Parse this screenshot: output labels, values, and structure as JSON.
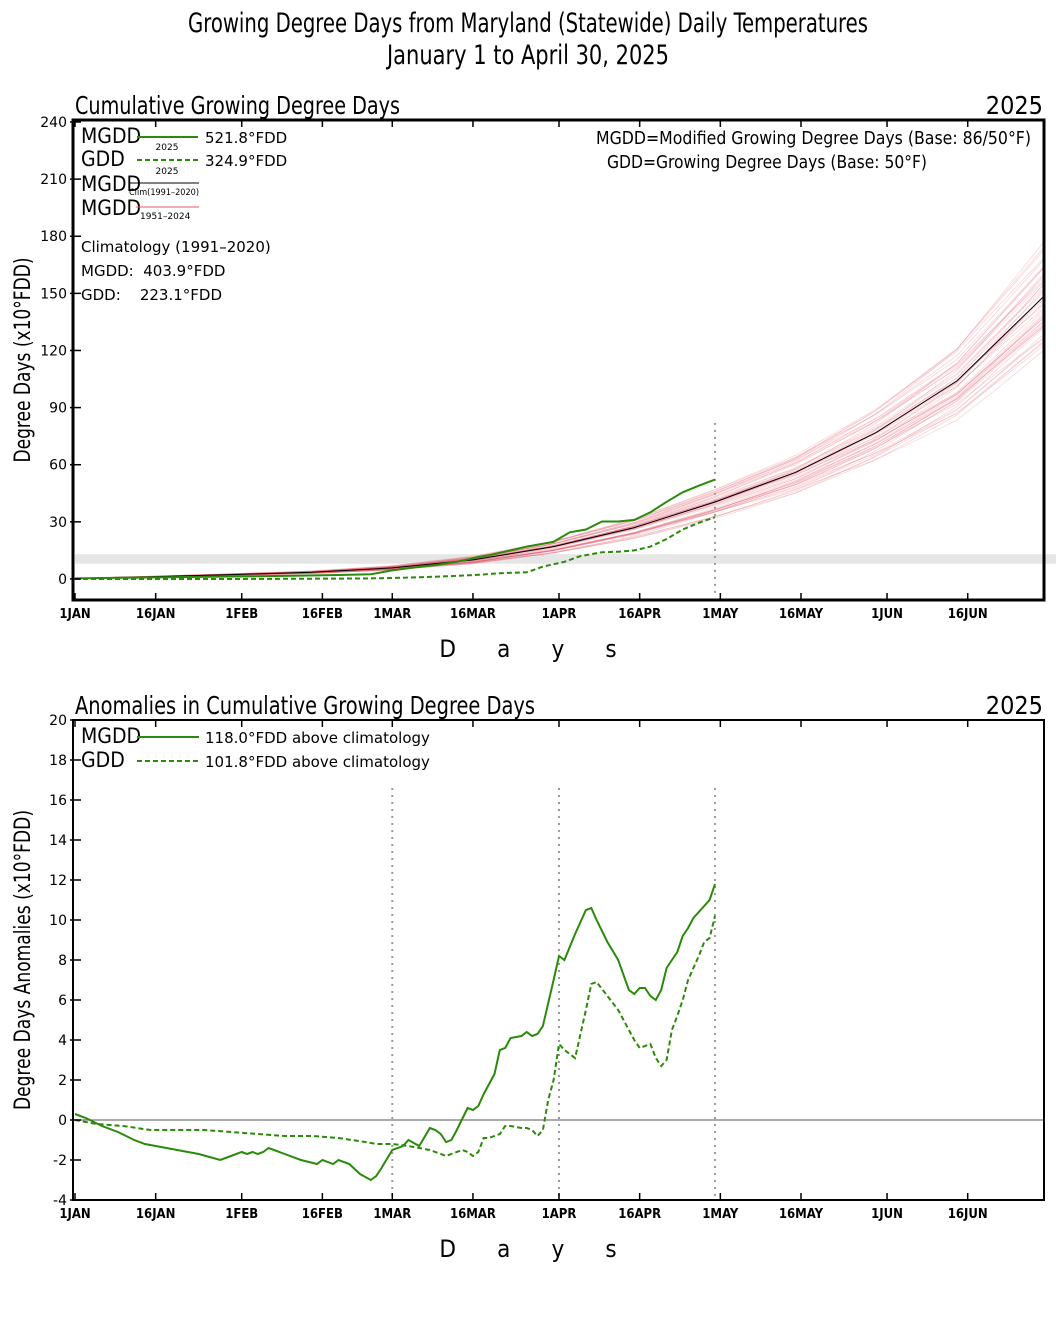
{
  "figure": {
    "title_line1": "Growing Degree Days from Maryland (Statewide) Daily Temperatures",
    "title_line2": "January 1 to April 30, 2025"
  },
  "colors": {
    "obs_2025": "#2a8a0a",
    "climatology": "#000000",
    "history": "#e35a6a",
    "vline": "#9a9a9a",
    "band": "#e6e6e6"
  },
  "panel1": {
    "subtitle": "Cumulative Growing Degree Days",
    "year": "2025",
    "legend": {
      "mgdd_label": "MGDD",
      "mgdd_sub": "2025",
      "mgdd_value": "521.8°FDD",
      "gdd_label": "GDD",
      "gdd_sub": "2025",
      "gdd_value": "324.9°FDD",
      "clim_label": "MGDD",
      "clim_sub": "Clim(1991–2020)",
      "hist_label": "MGDD",
      "hist_sub": "1951–2024"
    },
    "definition1": "MGDD=Modified Growing Degree Days (Base: 86/50°F)",
    "definition2": "GDD=Growing Degree Days (Base: 50°F)",
    "climatology_heading": "Climatology (1991–2020)",
    "climatology_mgdd": "MGDD:  403.9°FDD",
    "climatology_gdd": "GDD:    223.1°FDD",
    "ylabel": "Degree Days (x10°FDD)",
    "xlabel": "D      a      y      s"
  },
  "panel2": {
    "subtitle": "Anomalies in Cumulative Growing Degree Days",
    "year": "2025",
    "legend": {
      "mgdd_label": "MGDD",
      "mgdd_text": "118.0°FDD above climatology",
      "gdd_label": "GDD",
      "gdd_text": "101.8°FDD above climatology"
    },
    "ylabel": "Degree Days Anomalies (x10°FDD)",
    "xlabel": "D      a      y      s"
  },
  "chart_data": [
    {
      "type": "line",
      "title": "Cumulative Growing Degree Days",
      "xlabel": "Days",
      "ylabel": "Degree Days (x10°FDD)",
      "x_unit": "day of year",
      "xlim": [
        1,
        181
      ],
      "ylim": [
        -10,
        240
      ],
      "yticks": [
        0,
        30,
        60,
        90,
        120,
        150,
        180,
        210,
        240
      ],
      "xticks": [
        {
          "day": 1,
          "label": "1JAN"
        },
        {
          "day": 16,
          "label": "16JAN"
        },
        {
          "day": 32,
          "label": "1FEB"
        },
        {
          "day": 47,
          "label": "16FEB"
        },
        {
          "day": 60,
          "label": "1MAR"
        },
        {
          "day": 75,
          "label": "16MAR"
        },
        {
          "day": 91,
          "label": "1APR"
        },
        {
          "day": 106,
          "label": "16APR"
        },
        {
          "day": 121,
          "label": "1MAY"
        },
        {
          "day": 136,
          "label": "16MAY"
        },
        {
          "day": 152,
          "label": "1JUN"
        },
        {
          "day": 167,
          "label": "16JUN"
        }
      ],
      "reference_lines": [
        {
          "axis": "x",
          "day": 120
        }
      ],
      "band": [
        8,
        13
      ],
      "history_spread": {
        "low_factor": 0.82,
        "high_factor": 1.17,
        "note": "MGDD 1951–2024 (faint red lines)"
      },
      "series": [
        {
          "name": "MGDD 2025",
          "style": "solid",
          "x": [
            1,
            10,
            20,
            30,
            40,
            50,
            56,
            60,
            64,
            68,
            72,
            76,
            78,
            82,
            85,
            90,
            93,
            96,
            99,
            102,
            105,
            108,
            111,
            114,
            117,
            120
          ],
          "y": [
            0.3,
            0.6,
            1.0,
            1.3,
            1.6,
            2.1,
            2.5,
            4.5,
            6.0,
            7.3,
            9.0,
            11.5,
            12.5,
            15.0,
            17.0,
            19.5,
            24.5,
            26.0,
            30.2,
            30.2,
            31.0,
            35.0,
            40.5,
            45.5,
            49.0,
            52.2
          ]
        },
        {
          "name": "GDD 2025",
          "style": "dashed",
          "x": [
            1,
            10,
            20,
            30,
            40,
            50,
            56,
            60,
            64,
            68,
            72,
            76,
            80,
            85,
            88,
            92,
            95,
            99,
            102,
            105,
            108,
            111,
            114,
            117,
            120
          ],
          "y": [
            0.0,
            0.0,
            0.0,
            0.0,
            0.1,
            0.2,
            0.3,
            0.5,
            0.8,
            1.2,
            1.6,
            2.2,
            3.0,
            3.5,
            6.5,
            9.0,
            12.0,
            14.0,
            14.3,
            15.0,
            17.0,
            21.0,
            26.0,
            29.5,
            32.5
          ]
        },
        {
          "name": "MGDD Clim(1991–2020)",
          "style": "solid",
          "x": [
            1,
            15,
            30,
            45,
            60,
            75,
            90,
            105,
            120,
            135,
            150,
            165,
            181
          ],
          "y": [
            0.3,
            1.2,
            2.3,
            3.5,
            5.8,
            10.0,
            17.0,
            27.0,
            40.4,
            56.0,
            77.0,
            104.0,
            148.0
          ]
        }
      ]
    },
    {
      "type": "line",
      "title": "Anomalies in Cumulative Growing Degree Days",
      "xlabel": "Days",
      "ylabel": "Degree Days Anomalies (x10°FDD)",
      "x_unit": "day of year",
      "xlim": [
        1,
        181
      ],
      "ylim": [
        -4,
        20
      ],
      "yticks": [
        -4,
        -2,
        0,
        2,
        4,
        6,
        8,
        10,
        12,
        14,
        16,
        18,
        20
      ],
      "reference_lines": [
        {
          "axis": "x",
          "day": 60
        },
        {
          "axis": "x",
          "day": 91
        },
        {
          "axis": "x",
          "day": 120
        },
        {
          "axis": "y",
          "value": 0
        }
      ],
      "series": [
        {
          "name": "MGDD",
          "style": "solid",
          "x": [
            1,
            3,
            6,
            9,
            12,
            14,
            16,
            20,
            24,
            28,
            30,
            32,
            33,
            34,
            35,
            36,
            37,
            38,
            40,
            43,
            46,
            47,
            49,
            50,
            52,
            54,
            56,
            57,
            58,
            60,
            62,
            63,
            65,
            67,
            68,
            69,
            70,
            71,
            72,
            74,
            75,
            76,
            77,
            79,
            80,
            81,
            82,
            84,
            85,
            86,
            87,
            88,
            90,
            91,
            92,
            94,
            96,
            97,
            98,
            100,
            102,
            104,
            105,
            106,
            107,
            108,
            109,
            110,
            111,
            112,
            113,
            114,
            115,
            116,
            117,
            118,
            119,
            120
          ],
          "y": [
            0.3,
            0.1,
            -0.3,
            -0.6,
            -1.0,
            -1.2,
            -1.3,
            -1.5,
            -1.7,
            -2.0,
            -1.8,
            -1.6,
            -1.7,
            -1.6,
            -1.7,
            -1.6,
            -1.4,
            -1.5,
            -1.7,
            -2.0,
            -2.2,
            -2.0,
            -2.2,
            -2.0,
            -2.2,
            -2.7,
            -3.0,
            -2.8,
            -2.4,
            -1.5,
            -1.3,
            -1.0,
            -1.3,
            -0.4,
            -0.5,
            -0.7,
            -1.1,
            -1.0,
            -0.5,
            0.6,
            0.5,
            0.7,
            1.3,
            2.3,
            3.5,
            3.6,
            4.1,
            4.2,
            4.4,
            4.2,
            4.3,
            4.7,
            7.0,
            8.2,
            8.0,
            9.3,
            10.5,
            10.6,
            10.0,
            8.9,
            8.0,
            6.5,
            6.3,
            6.6,
            6.6,
            6.2,
            6.0,
            6.5,
            7.6,
            8.0,
            8.4,
            9.2,
            9.6,
            10.1,
            10.4,
            10.7,
            11.0,
            11.8
          ]
        },
        {
          "name": "GDD",
          "style": "dashed",
          "x": [
            1,
            5,
            10,
            15,
            20,
            25,
            30,
            35,
            40,
            45,
            50,
            55,
            57,
            60,
            63,
            65,
            67,
            70,
            71,
            73,
            74,
            75,
            76,
            77,
            78,
            80,
            81,
            82,
            84,
            85,
            86,
            87,
            88,
            89,
            90,
            91,
            92,
            94,
            96,
            97,
            98,
            100,
            102,
            104,
            105,
            106,
            108,
            109,
            110,
            111,
            112,
            113,
            114,
            115,
            116,
            117,
            118,
            119,
            120
          ],
          "y": [
            0.0,
            -0.2,
            -0.3,
            -0.5,
            -0.5,
            -0.5,
            -0.6,
            -0.7,
            -0.8,
            -0.8,
            -0.9,
            -1.1,
            -1.2,
            -1.2,
            -1.3,
            -1.4,
            -1.5,
            -1.8,
            -1.7,
            -1.5,
            -1.6,
            -1.8,
            -1.6,
            -0.9,
            -0.9,
            -0.7,
            -0.3,
            -0.3,
            -0.4,
            -0.4,
            -0.5,
            -0.8,
            -0.5,
            1.0,
            2.0,
            3.8,
            3.5,
            3.1,
            5.5,
            6.8,
            6.9,
            6.2,
            5.5,
            4.5,
            4.0,
            3.6,
            3.8,
            3.1,
            2.7,
            3.0,
            4.5,
            5.2,
            6.0,
            7.0,
            7.6,
            8.2,
            8.9,
            9.1,
            10.2
          ]
        }
      ]
    }
  ]
}
